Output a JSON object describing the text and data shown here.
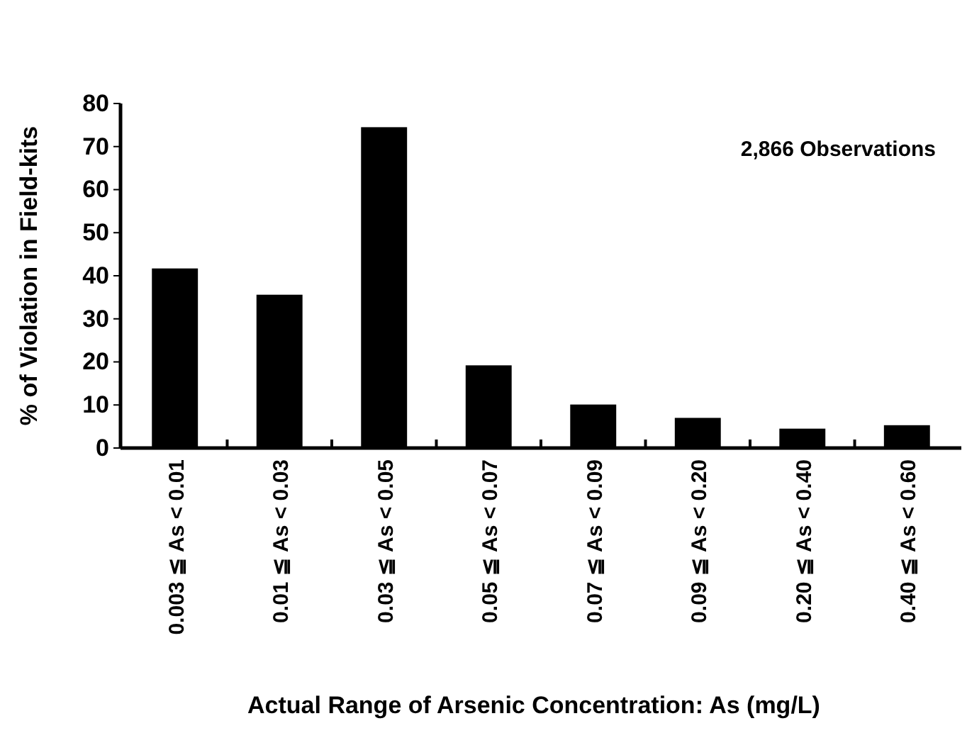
{
  "chart_data": {
    "type": "bar",
    "xlabel": "Actual Range of Arsenic Concentration: As (mg/L)",
    "ylabel": "% of Violation in Field-kits",
    "categories": [
      "0.003 ≦ As < 0.01",
      "0.01 ≦ As < 0.03",
      "0.03 ≦ As < 0.05",
      "0.05 ≦ As < 0.07",
      "0.07 ≦ As < 0.09",
      "0.09 ≦ As < 0.20",
      "0.20 ≦ As < 0.40",
      "0.40 ≦ As < 0.60"
    ],
    "values": [
      41.7,
      35.6,
      74.5,
      19.2,
      10.1,
      7.0,
      4.5,
      5.3
    ],
    "color": "#000000",
    "ylim": [
      0,
      80
    ],
    "yticks": [
      0,
      10,
      20,
      30,
      40,
      50,
      60,
      70,
      80
    ],
    "annotations": [
      "2,866 Observations"
    ]
  }
}
